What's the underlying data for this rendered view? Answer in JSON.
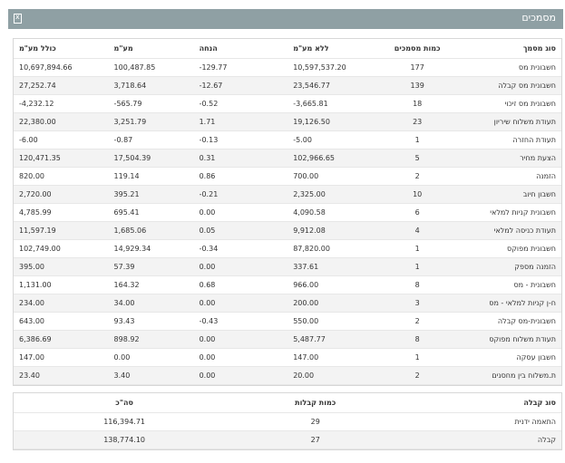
{
  "header": {
    "title": "מסמכים",
    "icon": "excel-export-icon"
  },
  "documents_table": {
    "columns": [
      "סוג מסמך",
      "כמות מסמכים",
      "ללא מע\"מ",
      "הנחה",
      "מע\"מ",
      "כולל מע\"מ"
    ],
    "rows": [
      [
        "חשבונית מס",
        "177",
        "10,597,537.20",
        "129.77-",
        "100,487.85",
        "10,697,894.66"
      ],
      [
        "חשבונית מס קבלה",
        "139",
        "23,546.77",
        "12.67-",
        "3,718.64",
        "27,252.74"
      ],
      [
        "חשבונית מס זיכוי",
        "18",
        "3,665.81-",
        "0.52-",
        "565.79-",
        "4,232.12-"
      ],
      [
        "תעודת משלוח שיריון",
        "23",
        "19,126.50",
        "1.71",
        "3,251.79",
        "22,380.00"
      ],
      [
        "תעודת החזרה",
        "1",
        "5.00-",
        "0.13-",
        "0.87-",
        "6.00-"
      ],
      [
        "הצעת מחיר",
        "5",
        "102,966.65",
        "0.31",
        "17,504.39",
        "120,471.35"
      ],
      [
        "הזמנה",
        "2",
        "700.00",
        "0.86",
        "119.14",
        "820.00"
      ],
      [
        "חשבון חיוב",
        "10",
        "2,325.00",
        "0.21-",
        "395.21",
        "2,720.00"
      ],
      [
        "חשבונית קניות למלאי",
        "6",
        "4,090.58",
        "0.00",
        "695.41",
        "4,785.99"
      ],
      [
        "תעודת כניסה למלאי",
        "4",
        "9,912.08",
        "0.05",
        "1,685.06",
        "11,597.19"
      ],
      [
        "חשבונית מפוקס",
        "1",
        "87,820.00",
        "0.34-",
        "14,929.34",
        "102,749.00"
      ],
      [
        "הזמנה מספק",
        "1",
        "337.61",
        "0.00",
        "57.39",
        "395.00"
      ],
      [
        "חשבונית - מס",
        "8",
        "966.00",
        "0.68",
        "164.32",
        "1,131.00"
      ],
      [
        "ח-ן קניות למלאי - מס",
        "3",
        "200.00",
        "0.00",
        "34.00",
        "234.00"
      ],
      [
        "חשבונית-מס קבלה",
        "2",
        "550.00",
        "0.43-",
        "93.43",
        "643.00"
      ],
      [
        "תעודת משלוח מפוקס",
        "8",
        "5,487.77",
        "0.00",
        "898.92",
        "6,386.69"
      ],
      [
        "חשבון עסקה",
        "1",
        "147.00",
        "0.00",
        "0.00",
        "147.00"
      ],
      [
        "ת.משלוח בין מחסנים",
        "2",
        "20.00",
        "0.00",
        "3.40",
        "23.40"
      ]
    ]
  },
  "receipts_table": {
    "columns": [
      "סוג קבלה",
      "כמות קבלות",
      "סה\"כ"
    ],
    "rows": [
      [
        "התאמה ידנית",
        "29",
        "116,394.71"
      ],
      [
        "קבלה",
        "27",
        "138,774.10"
      ]
    ]
  }
}
